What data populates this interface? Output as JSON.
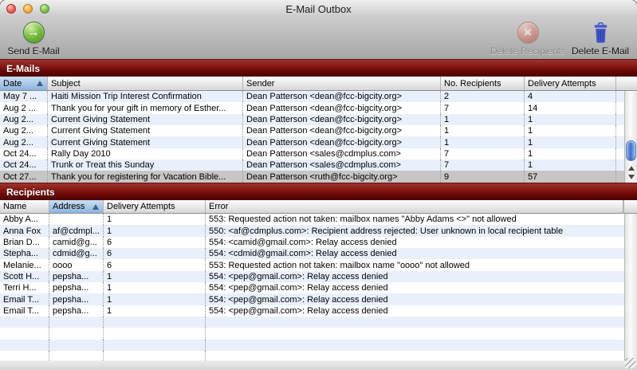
{
  "window": {
    "title": "E-Mail Outbox"
  },
  "colors": {
    "section_bar": "#6e0a07",
    "stripe": "#e9effb",
    "selection": "#c6c6c6",
    "sorted_header": "#8bb2e0",
    "scroll_thumb": "#3c6fce",
    "send_icon_green": "#4c9421",
    "delete_icon_red": "#b04a3d",
    "trash_icon_blue": "#4257c8"
  },
  "toolbar": {
    "send_label": "Send E-Mail",
    "delete_recipients_label": "Delete Recipients",
    "delete_email_label": "Delete E-Mail",
    "send_glyph": "→",
    "delete_recipients_glyph": "×"
  },
  "emails_section": {
    "title": "E-Mails",
    "columns": [
      "Date",
      "Subject",
      "Sender",
      "No. Recipients",
      "Delivery Attempts"
    ],
    "sort_column": "Date",
    "sort_direction": "ascending",
    "rows": [
      {
        "date": "May 7 ...",
        "subject": "Haiti Mission Trip Interest Confirmation",
        "sender": "Dean Patterson <dean@fcc-bigcity.org>",
        "recipients": "2",
        "attempts": "4"
      },
      {
        "date": "Aug 2 ...",
        "subject": "Thank you for your gift in memory of Esther...",
        "sender": "Dean Patterson <dean@fcc-bigcity.org>",
        "recipients": "7",
        "attempts": "14"
      },
      {
        "date": "Aug 2...",
        "subject": "Current Giving Statement",
        "sender": "Dean Patterson <dean@fcc-bigcity.org>",
        "recipients": "1",
        "attempts": "1"
      },
      {
        "date": "Aug 2...",
        "subject": "Current Giving Statement",
        "sender": "Dean Patterson <dean@fcc-bigcity.org>",
        "recipients": "1",
        "attempts": "1"
      },
      {
        "date": "Aug 2...",
        "subject": "Current Giving Statement",
        "sender": "Dean Patterson <dean@fcc-bigcity.org>",
        "recipients": "1",
        "attempts": "1"
      },
      {
        "date": "Oct 24...",
        "subject": "Rally Day 2010",
        "sender": "Dean Patterson <sales@cdmplus.com>",
        "recipients": "7",
        "attempts": "1"
      },
      {
        "date": "Oct 24...",
        "subject": "Trunk or Treat this Sunday",
        "sender": "Dean Patterson <sales@cdmplus.com>",
        "recipients": "7",
        "attempts": "1"
      },
      {
        "date": "Oct 27...",
        "subject": "Thank you for registering for Vacation Bible...",
        "sender": "Dean Patterson <ruth@fcc-bigcity.org>",
        "recipients": "9",
        "attempts": "57",
        "selected": true
      }
    ]
  },
  "recipients_section": {
    "title": "Recipients",
    "columns": [
      "Name",
      "Address",
      "Delivery Attempts",
      "Error"
    ],
    "sort_column": "Address",
    "sort_direction": "ascending",
    "rows": [
      {
        "name": "Abby A...",
        "address": "",
        "attempts": "1",
        "error": "553: Requested action not taken: mailbox names \"Abby Adams <>\" not allowed"
      },
      {
        "name": "Anna Fox",
        "address": "af@cdmpl...",
        "attempts": "1",
        "error": "550: <af@cdmplus.com>: Recipient address rejected: User unknown in local recipient table"
      },
      {
        "name": "Brian D...",
        "address": "camid@g...",
        "attempts": "6",
        "error": "554: <camid@gmail.com>: Relay access denied"
      },
      {
        "name": "Stepha...",
        "address": "cdmid@g...",
        "attempts": "6",
        "error": "554: <cdmid@gmail.com>: Relay access denied"
      },
      {
        "name": "Melanie...",
        "address": "oooo",
        "attempts": "6",
        "error": "553: Requested action not taken: mailbox name \"oooo\" not allowed"
      },
      {
        "name": "Scott H...",
        "address": "pepsha...",
        "attempts": "1",
        "error": "554: <pep@gmail.com>: Relay access denied"
      },
      {
        "name": "Terri H...",
        "address": "pepsha...",
        "attempts": "1",
        "error": "554: <pep@gmail.com>: Relay access denied"
      },
      {
        "name": "Email T...",
        "address": "pepsha...",
        "attempts": "1",
        "error": "554: <pep@gmail.com>: Relay access denied"
      },
      {
        "name": "Email T...",
        "address": "pepsha...",
        "attempts": "1",
        "error": "554: <pep@gmail.com>: Relay access denied"
      }
    ]
  }
}
